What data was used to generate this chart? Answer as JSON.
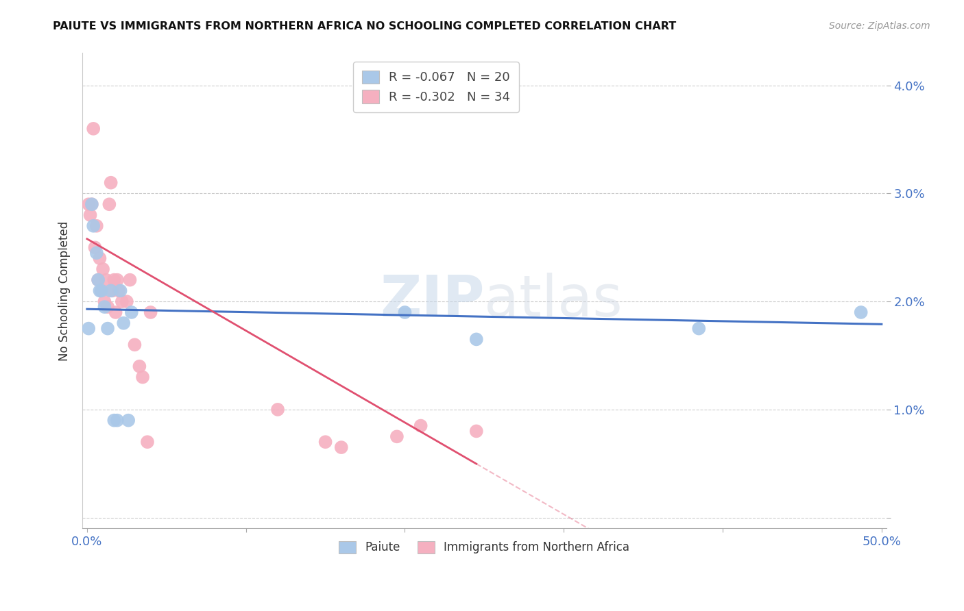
{
  "title": "PAIUTE VS IMMIGRANTS FROM NORTHERN AFRICA NO SCHOOLING COMPLETED CORRELATION CHART",
  "source": "Source: ZipAtlas.com",
  "ylabel": "No Schooling Completed",
  "xlim": [
    -0.003,
    0.503
  ],
  "ylim": [
    -0.001,
    0.043
  ],
  "yticks": [
    0.0,
    0.01,
    0.02,
    0.03,
    0.04
  ],
  "ytick_labels": [
    "",
    "1.0%",
    "2.0%",
    "3.0%",
    "4.0%"
  ],
  "xticks": [
    0.0,
    0.1,
    0.2,
    0.3,
    0.4,
    0.5
  ],
  "xtick_labels": [
    "0.0%",
    "",
    "",
    "",
    "",
    "50.0%"
  ],
  "R1": "-0.067",
  "N1": "20",
  "R2": "-0.302",
  "N2": "34",
  "watermark": "ZIPatlas",
  "blue_scatter_color": "#aac8e8",
  "pink_scatter_color": "#f5b0c0",
  "blue_line_color": "#4472c4",
  "pink_line_color": "#e05070",
  "paiute_x": [
    0.001,
    0.003,
    0.004,
    0.006,
    0.007,
    0.008,
    0.009,
    0.011,
    0.013,
    0.015,
    0.017,
    0.019,
    0.021,
    0.023,
    0.026,
    0.028,
    0.2,
    0.245,
    0.385,
    0.487
  ],
  "paiute_y": [
    0.0175,
    0.029,
    0.027,
    0.0245,
    0.022,
    0.021,
    0.021,
    0.0195,
    0.0175,
    0.021,
    0.009,
    0.009,
    0.021,
    0.018,
    0.009,
    0.019,
    0.019,
    0.0165,
    0.0175,
    0.019
  ],
  "imm_x": [
    0.001,
    0.002,
    0.003,
    0.004,
    0.005,
    0.006,
    0.007,
    0.008,
    0.009,
    0.01,
    0.011,
    0.012,
    0.013,
    0.014,
    0.015,
    0.016,
    0.017,
    0.018,
    0.019,
    0.02,
    0.022,
    0.025,
    0.027,
    0.03,
    0.033,
    0.035,
    0.038,
    0.04,
    0.12,
    0.15,
    0.16,
    0.195,
    0.21,
    0.245
  ],
  "imm_y": [
    0.029,
    0.028,
    0.029,
    0.036,
    0.025,
    0.027,
    0.022,
    0.024,
    0.021,
    0.023,
    0.02,
    0.022,
    0.0195,
    0.029,
    0.031,
    0.021,
    0.022,
    0.019,
    0.022,
    0.021,
    0.02,
    0.02,
    0.022,
    0.016,
    0.014,
    0.013,
    0.007,
    0.019,
    0.01,
    0.007,
    0.0065,
    0.0075,
    0.0085,
    0.008
  ],
  "blue_intercept": 0.0193,
  "blue_slope": -0.0028,
  "pink_intercept": 0.0258,
  "pink_slope": -0.085
}
